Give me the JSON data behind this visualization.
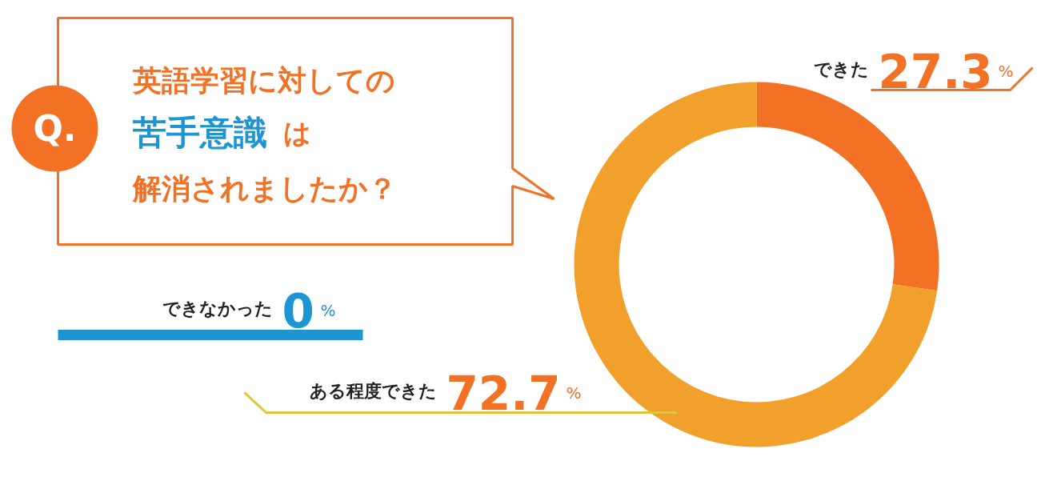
{
  "chart_data": {
    "type": "donut",
    "title": "英語学習に対しての苦手意識は解消されましたか？",
    "categories": [
      "できた",
      "ある程度できた",
      "できなかった"
    ],
    "values": [
      27.3,
      72.7,
      0
    ],
    "colors": [
      "#f37124",
      "#f0a02b",
      "#1e95d3"
    ],
    "value_labels": [
      "27.3%",
      "72.7%",
      "0%"
    ],
    "annotations": [
      "Q."
    ]
  }
}
